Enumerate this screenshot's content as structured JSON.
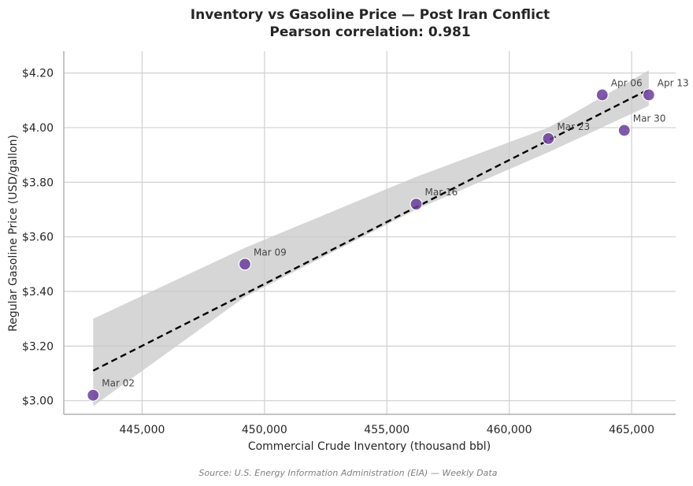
{
  "chart_data": {
    "type": "scatter",
    "title": "Inventory vs Gasoline Price — Post Iran Conflict",
    "subtitle": "Pearson correlation: 0.981",
    "xlabel": "Commercial Crude Inventory (thousand bbl)",
    "ylabel": "Regular Gasoline Price (USD/gallon)",
    "source": "Source: U.S. Energy Information Administration (EIA) — Weekly Data",
    "xlim": [
      441800,
      466800
    ],
    "ylim": [
      2.95,
      4.28
    ],
    "x_ticks": [
      445000,
      450000,
      455000,
      460000,
      465000
    ],
    "x_tick_labels": [
      "445,000",
      "450,000",
      "455,000",
      "460,000",
      "465,000"
    ],
    "y_ticks": [
      3.0,
      3.2,
      3.4,
      3.6,
      3.8,
      4.0,
      4.2
    ],
    "y_tick_labels": [
      "$3.00",
      "$3.20",
      "$3.40",
      "$3.60",
      "$3.80",
      "$4.00",
      "$4.20"
    ],
    "grid": true,
    "points": [
      {
        "label": "Mar 02",
        "x": 443000,
        "y": 3.02
      },
      {
        "label": "Mar 09",
        "x": 449200,
        "y": 3.5
      },
      {
        "label": "Mar 16",
        "x": 456200,
        "y": 3.72
      },
      {
        "label": "Mar 23",
        "x": 461600,
        "y": 3.96
      },
      {
        "label": "Mar 30",
        "x": 464700,
        "y": 3.99
      },
      {
        "label": "Apr 06",
        "x": 463800,
        "y": 4.12
      },
      {
        "label": "Apr 13",
        "x": 465700,
        "y": 4.12
      }
    ],
    "regression": {
      "style": "dashed",
      "points": [
        [
          443000,
          3.11
        ],
        [
          465700,
          4.14
        ]
      ]
    },
    "confidence_band": {
      "upper": [
        [
          443000,
          3.3
        ],
        [
          449200,
          3.56
        ],
        [
          456200,
          3.82
        ],
        [
          461600,
          4.0
        ],
        [
          465700,
          4.21
        ]
      ],
      "lower": [
        [
          443000,
          2.98
        ],
        [
          449200,
          3.38
        ],
        [
          456200,
          3.7
        ],
        [
          461600,
          3.91
        ],
        [
          465700,
          4.08
        ]
      ]
    },
    "colors": {
      "point": "#6a3d9a",
      "point_edge": "#ffffff",
      "regression": "#000000",
      "band": "#c8c8c8",
      "grid": "#d0d0d0",
      "axis": "#b0b0b0"
    }
  }
}
